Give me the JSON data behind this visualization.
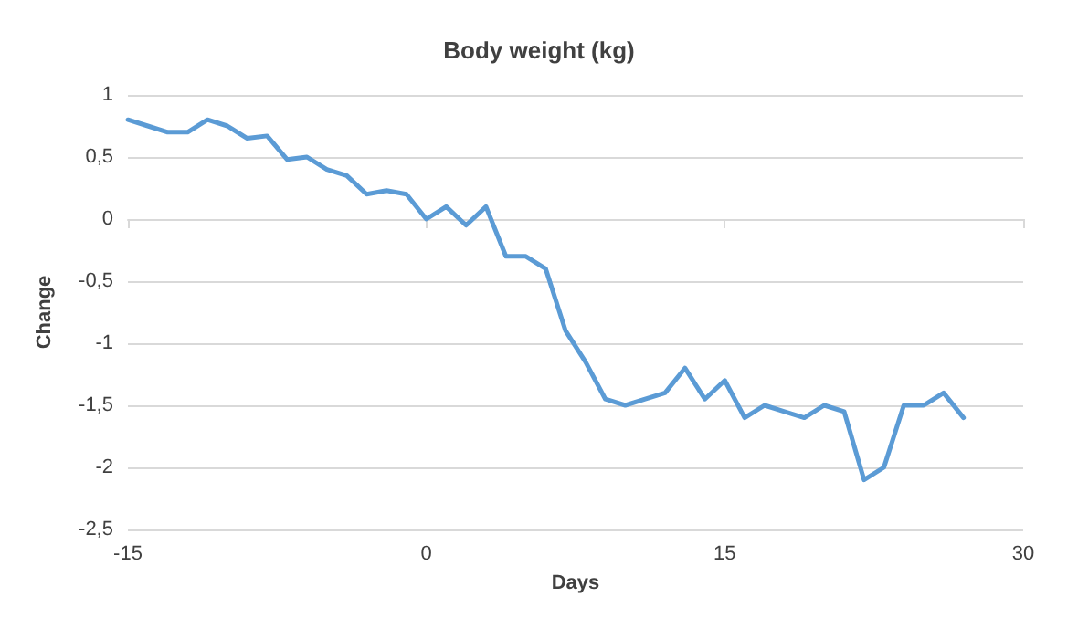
{
  "chart_data": {
    "type": "line",
    "title": "Body weight (kg)",
    "xlabel": "Days",
    "ylabel": "Change",
    "x": [
      -15,
      -14,
      -13,
      -12,
      -11,
      -10,
      -9,
      -8,
      -7,
      -6,
      -5,
      -4,
      -3,
      -2,
      -1,
      0,
      1,
      2,
      3,
      4,
      5,
      6,
      7,
      8,
      9,
      10,
      11,
      12,
      13,
      14,
      15,
      16,
      17,
      18,
      19,
      20,
      21,
      22,
      23,
      24,
      25,
      26,
      27
    ],
    "series": [
      {
        "color": "#5b9bd5",
        "values": [
          0.8,
          0.75,
          0.7,
          0.7,
          0.8,
          0.75,
          0.65,
          0.67,
          0.48,
          0.5,
          0.4,
          0.35,
          0.2,
          0.23,
          0.2,
          0,
          0.1,
          -0.05,
          0.1,
          -0.3,
          -0.3,
          -0.4,
          -0.9,
          -1.15,
          -1.45,
          -1.5,
          -1.45,
          -1.4,
          -1.2,
          -1.45,
          -1.3,
          -1.6,
          -1.5,
          -1.55,
          -1.6,
          -1.5,
          -1.55,
          -2.1,
          -2,
          -1.5,
          -1.5,
          -1.4,
          -1.6
        ]
      }
    ],
    "xlim": [
      -15,
      30
    ],
    "xticks": [
      -15,
      0,
      15,
      30
    ],
    "ylim": [
      -2.5,
      1
    ],
    "yticks": [
      {
        "value": -2.5,
        "label": "-2,5"
      },
      {
        "value": -2,
        "label": "-2"
      },
      {
        "value": -1.5,
        "label": "-1,5"
      },
      {
        "value": -1,
        "label": "-1"
      },
      {
        "value": -0.5,
        "label": "-0,5"
      },
      {
        "value": 0,
        "label": "0"
      },
      {
        "value": 0.5,
        "label": "0,5"
      },
      {
        "value": 1,
        "label": "1"
      }
    ],
    "grid": "y",
    "marker": "none",
    "line_style": "solid"
  }
}
